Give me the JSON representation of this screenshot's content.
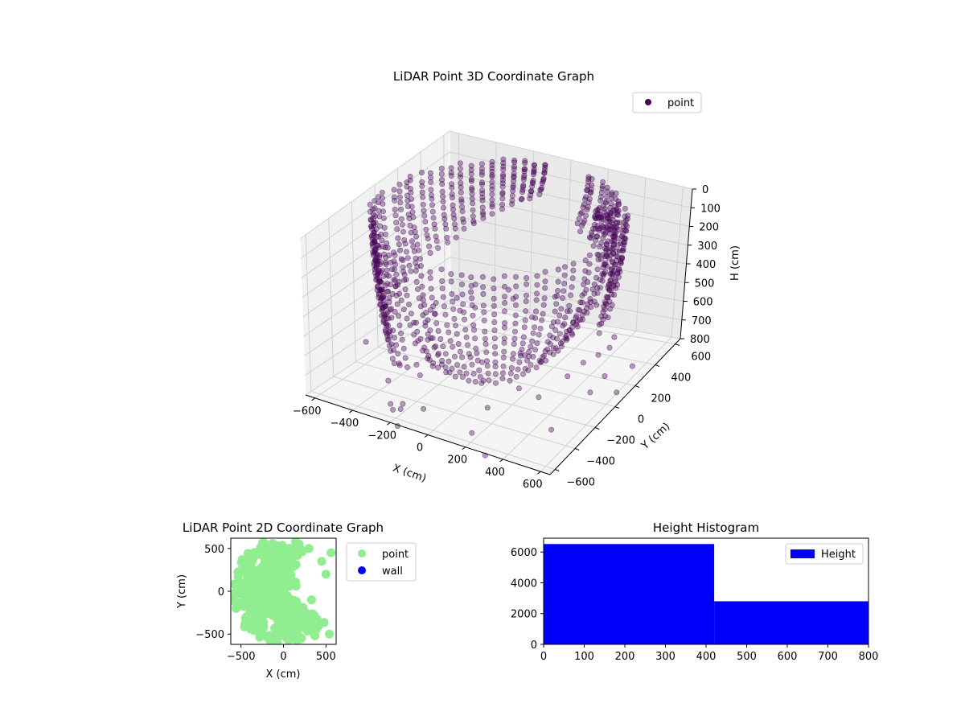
{
  "chart_data": [
    {
      "type": "scatter",
      "projection": "3d",
      "title": "LiDAR Point 3D Coordinate Graph",
      "xlabel": "X (cm)",
      "ylabel": "Y (cm)",
      "zlabel": "H (cm)",
      "xlim": [
        -650,
        650
      ],
      "ylim": [
        -650,
        650
      ],
      "zlim": [
        800,
        0
      ],
      "xticks": [
        "−600",
        "−400",
        "−200",
        "0",
        "200",
        "400",
        "600"
      ],
      "yticks": [
        "−600",
        "−400",
        "−200",
        "0",
        "200",
        "400",
        "600"
      ],
      "zticks": [
        "0",
        "100",
        "200",
        "300",
        "400",
        "500",
        "600",
        "700",
        "800"
      ],
      "grid": true,
      "legend": "top-right",
      "series": [
        {
          "name": "point",
          "color": "#440154",
          "description": "dense ring of points (radius ~580 cm) sweeping from H=0 down to H~600, with a spike near x~300,y~450",
          "sample_points": [
            [
              -580,
              0,
              50
            ],
            [
              0,
              580,
              0
            ],
            [
              580,
              0,
              100
            ],
            [
              0,
              -580,
              400
            ],
            [
              -400,
              -400,
              250
            ],
            [
              300,
              450,
              120
            ],
            [
              450,
              -200,
              600
            ]
          ]
        }
      ]
    },
    {
      "type": "scatter",
      "title": "LiDAR Point 2D Coordinate Graph",
      "xlabel": "X (cm)",
      "ylabel": "Y (cm)",
      "xlim": [
        -620,
        620
      ],
      "ylim": [
        -620,
        620
      ],
      "xticks": [
        "−500",
        "0",
        "500"
      ],
      "yticks": [
        "−500",
        "0",
        "500"
      ],
      "legend": "outside-right",
      "series": [
        {
          "name": "point",
          "color": "#90ee90"
        },
        {
          "name": "wall",
          "color": "#0000ff"
        }
      ]
    },
    {
      "type": "bar",
      "subtype": "histogram",
      "title": "Height Histogram",
      "xlim": [
        0,
        800
      ],
      "ylim": [
        0,
        6900
      ],
      "xticks": [
        "0",
        "100",
        "200",
        "300",
        "400",
        "500",
        "600",
        "700",
        "800"
      ],
      "yticks": [
        "0",
        "2000",
        "4000",
        "6000"
      ],
      "legend": "top-right",
      "series": [
        {
          "name": "Height",
          "color": "#0000ff",
          "bins": [
            [
              0,
              420,
              6520
            ],
            [
              420,
              800,
              2800
            ]
          ]
        }
      ]
    }
  ]
}
